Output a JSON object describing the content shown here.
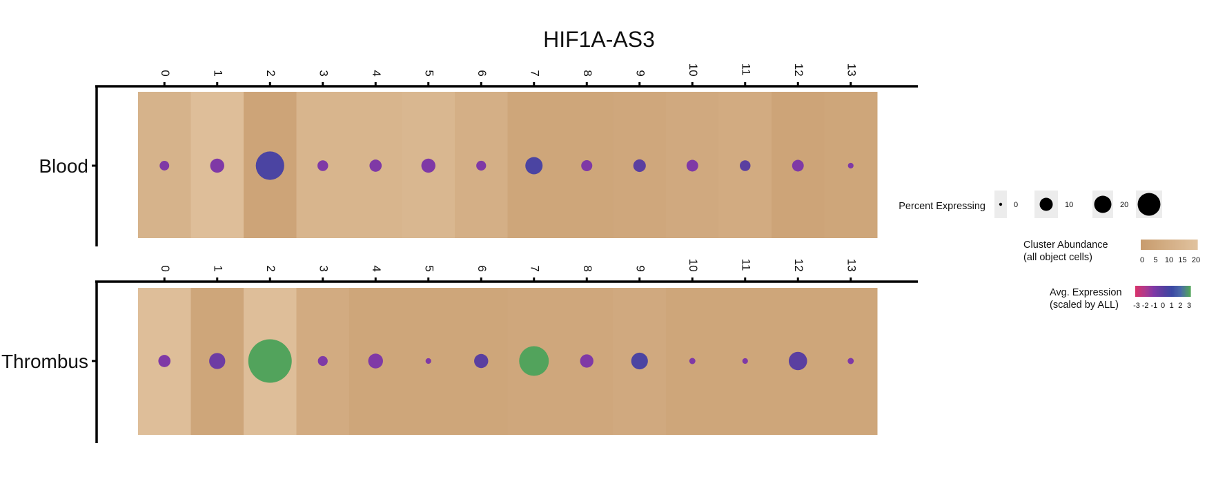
{
  "chart_data": {
    "type": "dot-heatmap",
    "title": "HIF1A-AS3",
    "clusters": [
      "0",
      "1",
      "2",
      "3",
      "4",
      "5",
      "6",
      "7",
      "8",
      "9",
      "10",
      "11",
      "12",
      "13"
    ],
    "rows": [
      {
        "name": "Blood",
        "abundance": [
          12,
          18,
          4,
          13,
          13,
          14,
          10,
          5,
          5,
          6,
          7,
          8,
          4,
          5
        ],
        "pct_expressing": [
          1.5,
          4,
          20,
          2,
          2.8,
          4,
          1.6,
          6.5,
          2.2,
          3,
          2.5,
          2,
          2.5,
          0.3
        ],
        "avg_expression": [
          -1,
          -1,
          0.5,
          -1,
          -1,
          -1,
          -1,
          0.5,
          -1,
          0,
          -1,
          0,
          -1,
          -1
        ]
      },
      {
        "name": "Thrombus",
        "abundance": [
          18,
          5,
          18,
          8,
          5,
          5,
          5,
          6,
          6,
          7,
          5,
          5,
          5,
          5
        ],
        "pct_expressing": [
          2.8,
          5.5,
          50,
          1.6,
          4.5,
          0.3,
          4,
          22,
          3.5,
          6,
          0.4,
          0.3,
          7.5,
          0.4
        ],
        "avg_expression": [
          -1,
          -0.5,
          3,
          -1,
          -1,
          -1,
          0,
          3,
          -1,
          0.5,
          -1,
          -1,
          0,
          -1
        ]
      }
    ],
    "legend": {
      "placement": "right",
      "percent": {
        "title": "Percent Expressing",
        "ticks": [
          "0",
          "10",
          "20"
        ],
        "values": [
          0,
          10,
          20
        ]
      },
      "abundance": {
        "title_line1": "Cluster Abundance",
        "title_line2": "(all object cells)",
        "ticks": [
          "0",
          "5",
          "10",
          "15",
          "20"
        ],
        "values": [
          0,
          5,
          10,
          15,
          20
        ]
      },
      "expression": {
        "title_line1": "Avg. Expression",
        "title_line2": "(scaled by ALL)",
        "ticks": [
          "-3",
          "-2",
          "-1",
          "0",
          "1",
          "2",
          "3"
        ],
        "values": [
          -3,
          -2,
          -1,
          0,
          1,
          2,
          3
        ]
      }
    },
    "colors": {
      "abundance_low": "#c89c6e",
      "abundance_high": "#e0c29e",
      "expression": [
        "#d6336c",
        "#b03a8c",
        "#7f39a6",
        "#5a3fa0",
        "#3b48a3",
        "#4a6aa8",
        "#52a35c"
      ]
    }
  }
}
